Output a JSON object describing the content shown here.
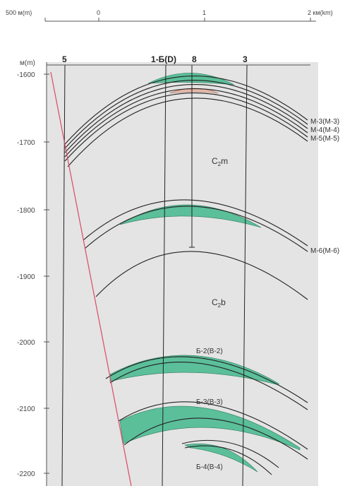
{
  "scale_bar": {
    "left_label": "500 м(m)",
    "ticks": [
      "0",
      "1",
      "2 км(km)"
    ]
  },
  "depth_axis": {
    "unit": "м(m)",
    "labels": [
      "-1600",
      "-1700",
      "-1800",
      "-1900",
      "-2000",
      "-2100",
      "-2200"
    ]
  },
  "wells": [
    "5",
    "1-Б(D)",
    "8",
    "3"
  ],
  "horizons": [
    "М-3(M-3)",
    "М-4(M-4)",
    "М-5(M-5)",
    "М-6(M-6)",
    "Б-2(B-2)",
    "Б-3(B-3)",
    "Б-4(B-4)"
  ],
  "units": {
    "c2m": {
      "main": "C",
      "sub": "2",
      "suffix": "m"
    },
    "c2b": {
      "main": "C",
      "sub": "2",
      "suffix": "b"
    }
  },
  "colors": {
    "reservoir": "#5bbf9a",
    "fault": "#d94a68",
    "background": "#e4e4e4",
    "line": "#222222",
    "lens": "#e8b7a8"
  }
}
